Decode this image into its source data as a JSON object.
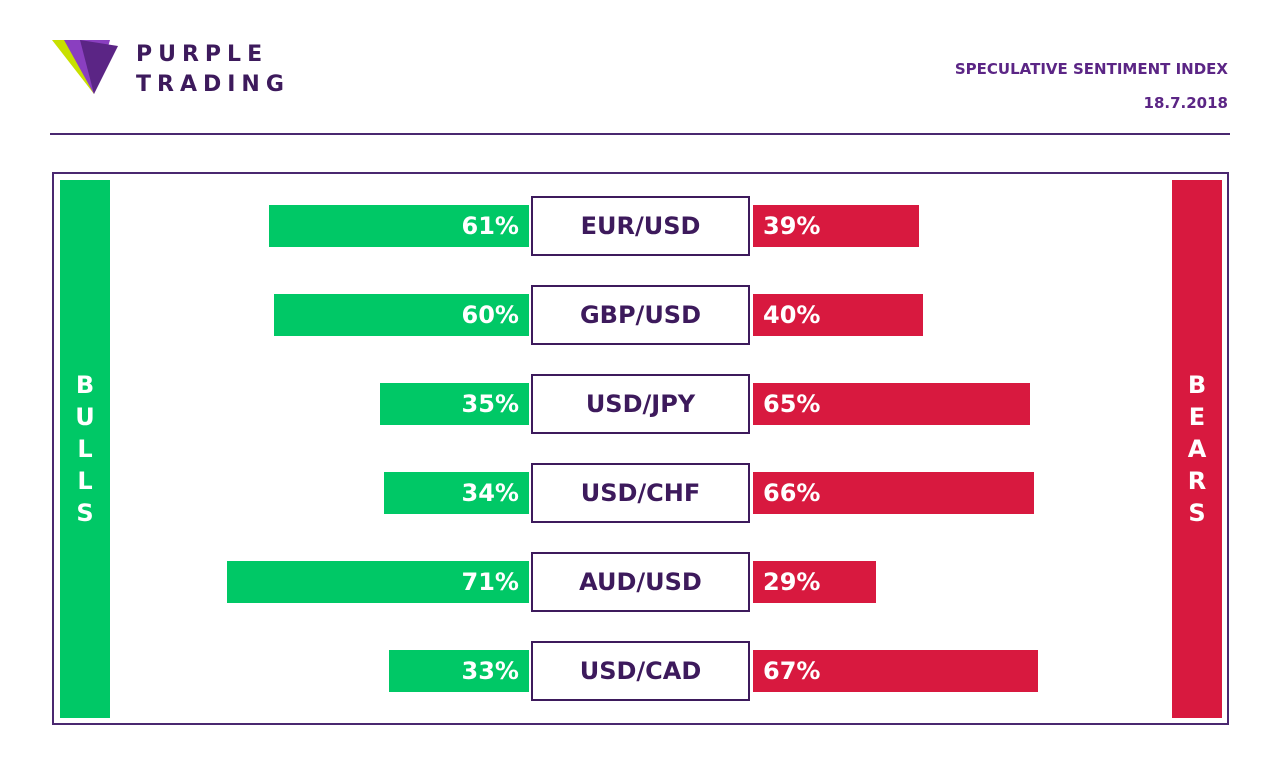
{
  "brand": {
    "line1": "PURPLE",
    "line2": "TRADING"
  },
  "header": {
    "title": "SPECULATIVE SENTIMENT INDEX",
    "date": "18.7.2018"
  },
  "colors": {
    "bull": "#00c866",
    "bear": "#d8193f",
    "brand_purple": "#4a1f68",
    "logo_green": "#c8e000"
  },
  "side_labels": {
    "bulls": "BULLS",
    "bears": "BEARS"
  },
  "chart_data": {
    "type": "bar",
    "orientation": "horizontal-diverging",
    "categories": [
      "EUR/USD",
      "GBP/USD",
      "USD/JPY",
      "USD/CHF",
      "AUD/USD",
      "USD/CAD"
    ],
    "series": [
      {
        "name": "BULLS",
        "values": [
          61,
          60,
          35,
          34,
          71,
          33
        ],
        "labels": [
          "61%",
          "60%",
          "35%",
          "34%",
          "71%",
          "33%"
        ]
      },
      {
        "name": "BEARS",
        "values": [
          39,
          40,
          65,
          66,
          29,
          67
        ],
        "labels": [
          "39%",
          "40%",
          "65%",
          "66%",
          "29%",
          "67%"
        ]
      }
    ],
    "unit": "%",
    "range": [
      0,
      100
    ],
    "grid": false
  }
}
